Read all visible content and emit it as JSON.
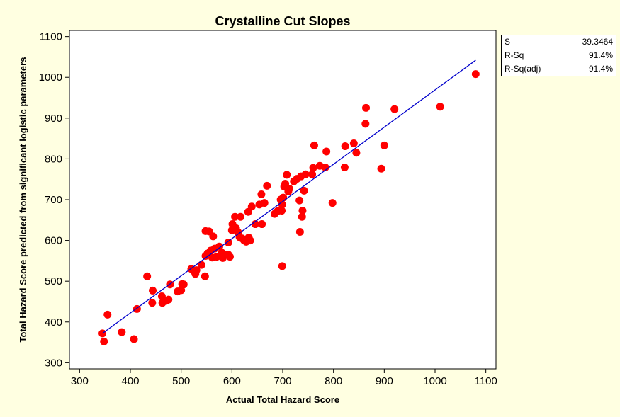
{
  "chart_data": {
    "type": "scatter",
    "title": "Crystalline Cut Slopes",
    "xlabel": "Actual Total Hazard Score",
    "ylabel": "Total Hazard Score predicted from significant logistic parameters",
    "xlim": [
      280,
      1120
    ],
    "ylim": [
      285,
      1115
    ],
    "xticks": [
      300,
      400,
      500,
      600,
      700,
      800,
      900,
      1000,
      1100
    ],
    "yticks": [
      300,
      400,
      500,
      600,
      700,
      800,
      900,
      1000,
      1100
    ],
    "grid": false,
    "colors": {
      "points": "#ff0000",
      "fit_line": "#0000cc",
      "plot_bg": "#ffffff",
      "figure_bg": "#ffffe1"
    },
    "fit_line": {
      "x": [
        345,
        1080
      ],
      "y": [
        372,
        1042
      ]
    },
    "series": [
      {
        "points": [
          [
            345,
            372
          ],
          [
            348,
            352
          ],
          [
            355,
            418
          ],
          [
            383,
            375
          ],
          [
            407,
            358
          ],
          [
            413,
            432
          ],
          [
            433,
            512
          ],
          [
            443,
            447
          ],
          [
            444,
            477
          ],
          [
            462,
            463
          ],
          [
            463,
            447
          ],
          [
            470,
            452
          ],
          [
            475,
            455
          ],
          [
            478,
            492
          ],
          [
            493,
            475
          ],
          [
            500,
            478
          ],
          [
            502,
            493
          ],
          [
            505,
            492
          ],
          [
            520,
            530
          ],
          [
            525,
            525
          ],
          [
            528,
            518
          ],
          [
            530,
            527
          ],
          [
            540,
            540
          ],
          [
            547,
            512
          ],
          [
            548,
            562
          ],
          [
            548,
            623
          ],
          [
            552,
            568
          ],
          [
            555,
            622
          ],
          [
            558,
            575
          ],
          [
            561,
            558
          ],
          [
            563,
            610
          ],
          [
            566,
            580
          ],
          [
            570,
            560
          ],
          [
            575,
            585
          ],
          [
            580,
            570
          ],
          [
            582,
            557
          ],
          [
            588,
            565
          ],
          [
            593,
            565
          ],
          [
            593,
            595
          ],
          [
            596,
            560
          ],
          [
            600,
            625
          ],
          [
            601,
            640
          ],
          [
            606,
            658
          ],
          [
            608,
            630
          ],
          [
            612,
            620
          ],
          [
            615,
            608
          ],
          [
            617,
            658
          ],
          [
            620,
            605
          ],
          [
            624,
            600
          ],
          [
            628,
            597
          ],
          [
            632,
            670
          ],
          [
            633,
            607
          ],
          [
            636,
            600
          ],
          [
            639,
            683
          ],
          [
            646,
            640
          ],
          [
            654,
            688
          ],
          [
            658,
            713
          ],
          [
            659,
            640
          ],
          [
            664,
            692
          ],
          [
            669,
            734
          ],
          [
            684,
            665
          ],
          [
            690,
            672
          ],
          [
            696,
            700
          ],
          [
            698,
            673
          ],
          [
            699,
            537
          ],
          [
            699,
            688
          ],
          [
            701,
            705
          ],
          [
            703,
            732
          ],
          [
            705,
            739
          ],
          [
            708,
            761
          ],
          [
            711,
            720
          ],
          [
            713,
            727
          ],
          [
            722,
            745
          ],
          [
            728,
            751
          ],
          [
            733,
            698
          ],
          [
            734,
            621
          ],
          [
            736,
            757
          ],
          [
            738,
            658
          ],
          [
            739,
            673
          ],
          [
            742,
            722
          ],
          [
            745,
            762
          ],
          [
            758,
            762
          ],
          [
            760,
            778
          ],
          [
            762,
            833
          ],
          [
            773,
            783
          ],
          [
            784,
            779
          ],
          [
            786,
            818
          ],
          [
            798,
            692
          ],
          [
            822,
            779
          ],
          [
            823,
            831
          ],
          [
            840,
            838
          ],
          [
            845,
            815
          ],
          [
            863,
            886
          ],
          [
            864,
            925
          ],
          [
            894,
            776
          ],
          [
            900,
            833
          ],
          [
            920,
            922
          ],
          [
            1010,
            928
          ],
          [
            1080,
            1008
          ]
        ]
      }
    ],
    "stats": [
      {
        "label": "S",
        "value": "39.3464"
      },
      {
        "label": "R-Sq",
        "value": "91.4%"
      },
      {
        "label": "R-Sq(adj)",
        "value": "91.4%"
      }
    ]
  }
}
